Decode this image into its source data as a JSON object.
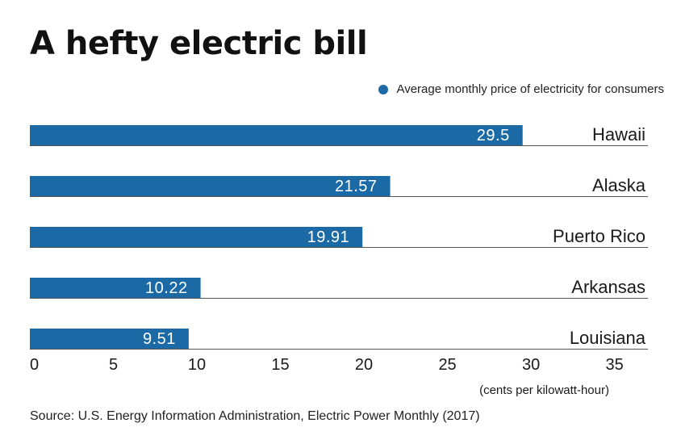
{
  "title": "A hefty electric bill",
  "source": "Source: U.S. Energy Information Administration, Electric Power Monthly (2017)",
  "colors": {
    "bar": "#1b6aa5",
    "axis": "#555555",
    "bar_text": "#ffffff",
    "text": "#1a1a1a"
  },
  "chart_data": {
    "type": "bar",
    "orientation": "horizontal",
    "categories": [
      "Hawaii",
      "Alaska",
      "Puerto Rico",
      "Arkansas",
      "Louisiana"
    ],
    "values": [
      29.5,
      21.57,
      19.91,
      10.22,
      9.51
    ],
    "value_labels": [
      "29.5",
      "21.57",
      "19.91",
      "10.22",
      "9.51"
    ],
    "legend": [
      "Average monthly price of electricity for consumers"
    ],
    "xlabel": "(cents per kilowatt-hour)",
    "xlim": [
      0,
      37
    ],
    "ticks": [
      0,
      5,
      10,
      15,
      20,
      25,
      30,
      35
    ],
    "tick_labels": [
      "0",
      "5",
      "10",
      "15",
      "20",
      "25",
      "30",
      "35"
    ]
  }
}
